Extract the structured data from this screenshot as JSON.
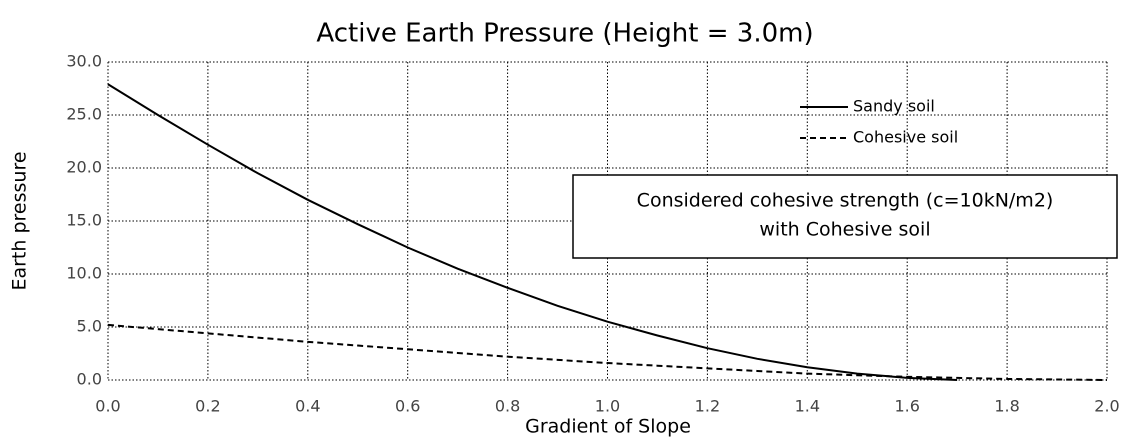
{
  "chart_data": {
    "type": "line",
    "title": "Active Earth Pressure (Height = 3.0m)",
    "x_label": "Gradient of Slope",
    "y_label": "Earth pressure",
    "annotation": [
      "Considered cohesive strength (c=10kN/m2)",
      "with Cohesive soil"
    ],
    "x": [
      0,
      0.1,
      0.2,
      0.3,
      0.4,
      0.5,
      0.6,
      0.7,
      0.8,
      0.9,
      1,
      1.1,
      1.2,
      1.3,
      1.4,
      1.5,
      1.6,
      1.7,
      1.8,
      1.9,
      2
    ],
    "series": [
      {
        "name": "Sandy soil",
        "color": "#000000",
        "dash": "solid",
        "values": [
          27.9,
          25.0,
          22.2,
          19.5,
          17.0,
          14.7,
          12.5,
          10.5,
          8.7,
          7.0,
          5.5,
          4.2,
          3.0,
          2.0,
          1.2,
          0.6,
          0.2,
          0.0,
          null,
          null,
          null
        ]
      },
      {
        "name": "Cohesive soil",
        "color": "#000000",
        "dash": "dashed",
        "values": [
          5.2,
          4.8,
          4.4,
          4.0,
          3.6,
          3.25,
          2.9,
          2.55,
          2.2,
          1.9,
          1.6,
          1.35,
          1.1,
          0.85,
          0.6,
          0.45,
          0.3,
          0.2,
          0.1,
          0.05,
          0.0
        ]
      }
    ],
    "xlim": [
      0,
      2
    ],
    "xticks": [
      {
        "value": 0,
        "label": "0.0"
      },
      0.2,
      0.4,
      0.6,
      0.8,
      {
        "value": 1,
        "label": "1.0"
      },
      1.2,
      1.4,
      1.6,
      1.8,
      {
        "value": 2,
        "label": "2.0"
      }
    ],
    "ylim": [
      0,
      30
    ],
    "yticks": [
      {
        "value": 0,
        "label": "0.0"
      },
      {
        "value": 5,
        "label": "5.0"
      },
      {
        "value": 10,
        "label": "10.0"
      },
      {
        "value": 15,
        "label": "15.0"
      },
      {
        "value": 20,
        "label": "20.0"
      },
      {
        "value": 25,
        "label": "25.0"
      },
      {
        "value": 30,
        "label": "30.0"
      }
    ],
    "grid": true,
    "legend": "upper right"
  }
}
